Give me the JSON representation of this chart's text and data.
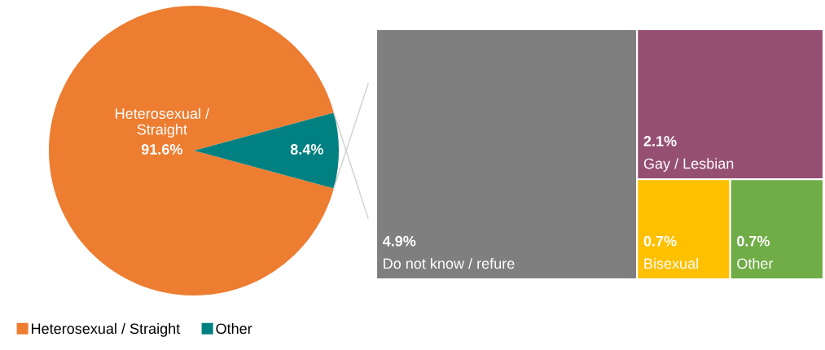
{
  "chart_data": [
    {
      "type": "pie",
      "categories": [
        "Heterosexual / Straight",
        "Other"
      ],
      "values": [
        91.6,
        8.4
      ],
      "colors": [
        "#ed7d31",
        "#008080"
      ],
      "value_labels": [
        "91.6%",
        "8.4%"
      ],
      "annotations": [
        "Heterosexual /\nStraight"
      ],
      "legend": "bottom"
    },
    {
      "type": "other",
      "categories": [
        "Do not know / refure",
        "Gay / Lesbian",
        "Bisexual",
        "Other"
      ],
      "values": [
        4.9,
        2.1,
        0.7,
        0.7
      ],
      "colors": [
        "#7f7f7f",
        "#954f72",
        "#ffc000",
        "#70ad47"
      ],
      "value_labels": [
        "4.9%",
        "2.1%",
        "0.7%",
        "0.7%"
      ]
    }
  ]
}
